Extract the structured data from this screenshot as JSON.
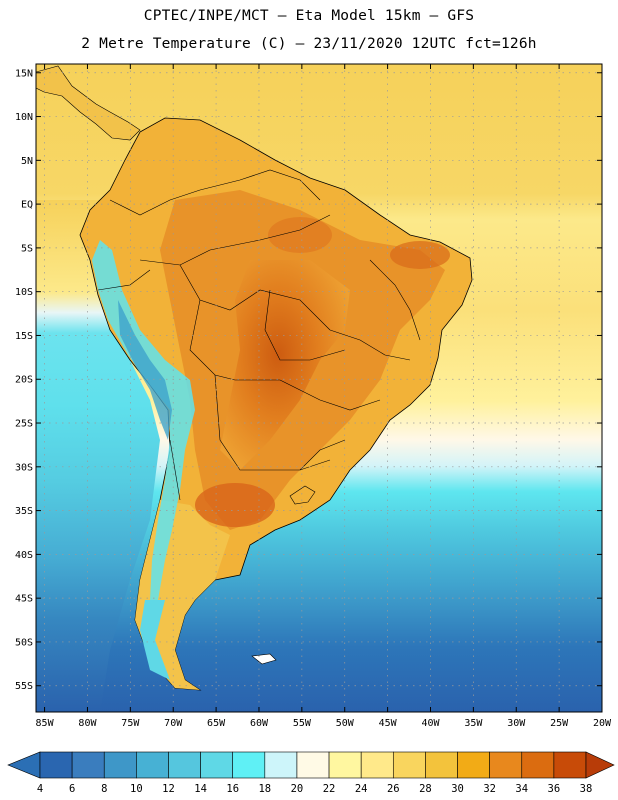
{
  "header": {
    "line1": "CPTEC/INPE/MCT –  Eta Model 15km – GFS",
    "line2": "2 Metre Temperature (C) – 23/11/2020 12UTC fct=126h"
  },
  "map": {
    "lat_labels": [
      "15N",
      "10N",
      "5N",
      "EQ",
      "5S",
      "10S",
      "15S",
      "20S",
      "25S",
      "30S",
      "35S",
      "40S",
      "45S",
      "50S",
      "55S"
    ],
    "lon_labels": [
      "85W",
      "80W",
      "75W",
      "70W",
      "65W",
      "60W",
      "55W",
      "50W",
      "45W",
      "40W",
      "35W",
      "30W",
      "25W",
      "20W"
    ],
    "extent": {
      "lon_min": -86,
      "lon_max": -20,
      "lat_min": -58,
      "lat_max": 16
    }
  },
  "colorbar": {
    "labels": [
      "4",
      "6",
      "8",
      "10",
      "12",
      "14",
      "16",
      "18",
      "20",
      "22",
      "24",
      "26",
      "28",
      "30",
      "32",
      "34",
      "36",
      "38"
    ],
    "colors": [
      "#2a66b0",
      "#3a7dbe",
      "#3e97c8",
      "#47b1d4",
      "#55c6de",
      "#5fd8e6",
      "#5ff0f5",
      "#cdf5fa",
      "#fffae6",
      "#fff7a0",
      "#ffe98a",
      "#f9d55e",
      "#f3c33c",
      "#f2ab16",
      "#e8881d",
      "#db6c10",
      "#c84b08"
    ],
    "under_color": "#2b6fb5",
    "over_color": "#b83c08"
  }
}
